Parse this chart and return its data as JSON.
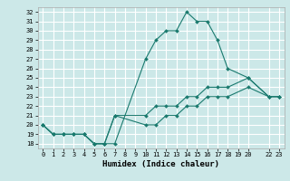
{
  "xlabel": "Humidex (Indice chaleur)",
  "ylabel": "",
  "bg_color": "#cce8e8",
  "grid_color": "#ffffff",
  "line_color": "#1a7a6e",
  "xlim": [
    -0.5,
    23.5
  ],
  "ylim": [
    17.5,
    32.5
  ],
  "xticks": [
    0,
    1,
    2,
    3,
    4,
    5,
    6,
    7,
    8,
    9,
    10,
    11,
    12,
    13,
    14,
    15,
    16,
    17,
    18,
    19,
    20,
    22,
    23
  ],
  "yticks": [
    18,
    19,
    20,
    21,
    22,
    23,
    24,
    25,
    26,
    27,
    28,
    29,
    30,
    31,
    32
  ],
  "lines": [
    {
      "x": [
        0,
        1,
        2,
        3,
        4,
        5,
        6,
        7,
        10,
        11,
        12,
        13,
        14,
        15,
        16,
        17,
        18,
        20,
        22,
        23
      ],
      "y": [
        20,
        19,
        19,
        19,
        19,
        18,
        18,
        18,
        27,
        29,
        30,
        30,
        32,
        31,
        31,
        29,
        26,
        25,
        23,
        23
      ]
    },
    {
      "x": [
        0,
        1,
        2,
        3,
        4,
        5,
        6,
        7,
        10,
        11,
        12,
        13,
        14,
        15,
        16,
        17,
        18,
        20,
        22,
        23
      ],
      "y": [
        20,
        19,
        19,
        19,
        19,
        18,
        18,
        21,
        21,
        22,
        22,
        22,
        23,
        23,
        24,
        24,
        24,
        25,
        23,
        23
      ]
    },
    {
      "x": [
        0,
        1,
        2,
        3,
        4,
        5,
        6,
        7,
        10,
        11,
        12,
        13,
        14,
        15,
        16,
        17,
        18,
        20,
        22,
        23
      ],
      "y": [
        20,
        19,
        19,
        19,
        19,
        18,
        18,
        21,
        20,
        20,
        21,
        21,
        22,
        22,
        23,
        23,
        23,
        24,
        23,
        23
      ]
    }
  ]
}
